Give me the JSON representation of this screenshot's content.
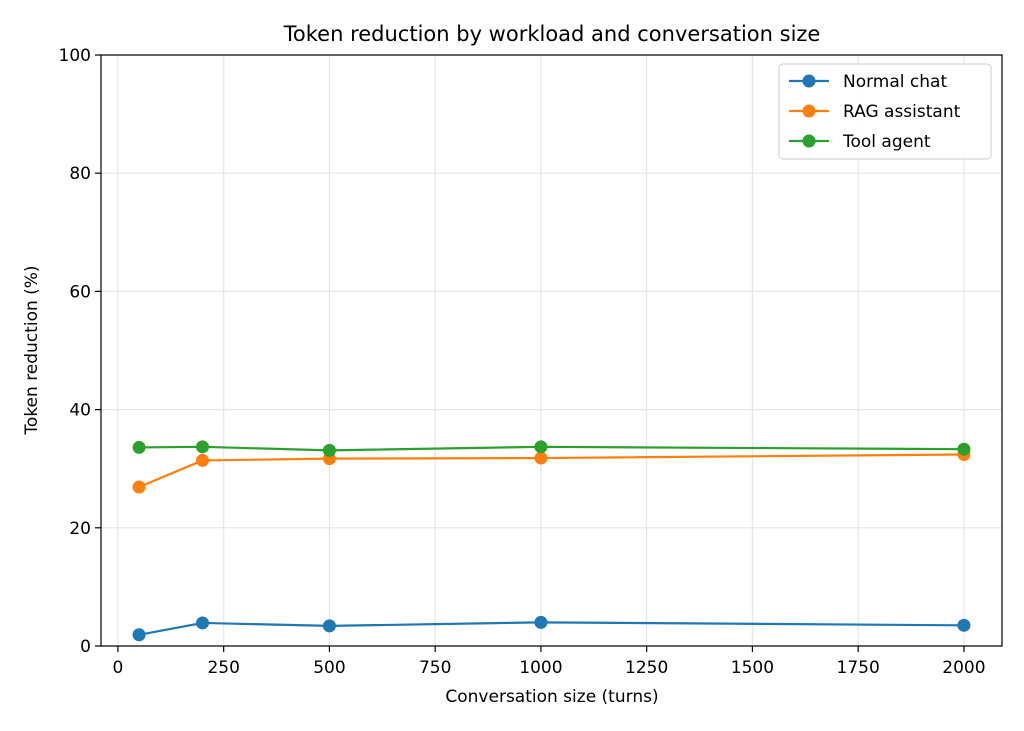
{
  "chart_data": {
    "type": "line",
    "title": "Token reduction by workload and conversation size",
    "xlabel": "Conversation size (turns)",
    "ylabel": "Token reduction (%)",
    "xlim": [
      -40,
      2090
    ],
    "ylim": [
      0,
      100
    ],
    "xticks": [
      0,
      250,
      500,
      750,
      1000,
      1250,
      1500,
      1750,
      2000
    ],
    "yticks": [
      0,
      20,
      40,
      60,
      80,
      100
    ],
    "grid": true,
    "legend_position": "top-right",
    "x": [
      50,
      200,
      500,
      1000,
      2000
    ],
    "series": [
      {
        "name": "Normal chat",
        "color": "#1f77b4",
        "values": [
          1.9,
          3.9,
          3.4,
          4.0,
          3.5
        ]
      },
      {
        "name": "RAG assistant",
        "color": "#ff7f0e",
        "values": [
          26.9,
          31.4,
          31.7,
          31.8,
          32.4
        ]
      },
      {
        "name": "Tool agent",
        "color": "#2ca02c",
        "values": [
          33.6,
          33.7,
          33.1,
          33.7,
          33.3
        ]
      }
    ]
  }
}
